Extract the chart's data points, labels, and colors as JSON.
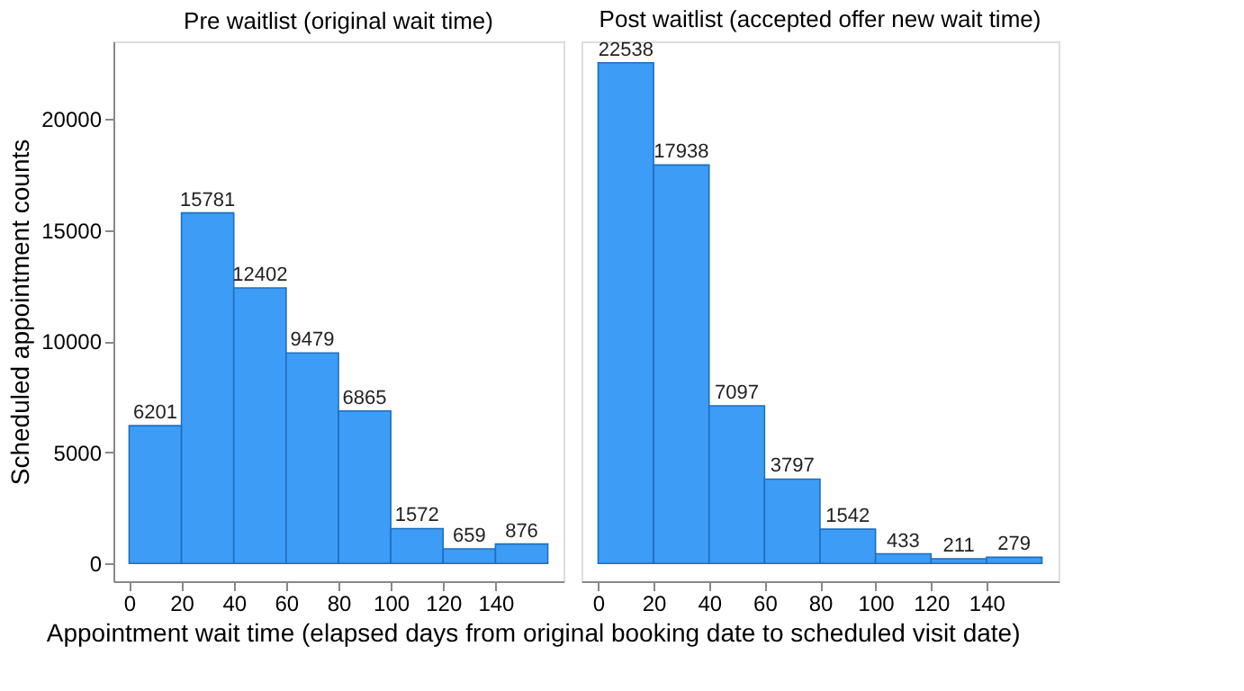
{
  "chart_data": [
    {
      "type": "histogram",
      "title": "Pre waitlist (original wait time)",
      "xlabel": "Appointment wait time (elapsed days from original booking date to scheduled visit date)",
      "ylabel": "Scheduled appointment counts",
      "bins": [
        0,
        20,
        40,
        60,
        80,
        100,
        120,
        140,
        160
      ],
      "values": [
        6201,
        15781,
        12402,
        9479,
        6865,
        1572,
        659,
        876
      ],
      "color": "#3d9cf5",
      "xlim": [
        -6,
        166
      ],
      "ylim": [
        -800,
        23500
      ],
      "xticks": [
        0,
        20,
        40,
        60,
        80,
        100,
        120,
        140
      ],
      "yticks": [
        0,
        5000,
        10000,
        15000,
        20000
      ],
      "data_labels": true,
      "grid": false
    },
    {
      "type": "histogram",
      "title": "Post waitlist (accepted offer new wait time)",
      "bins": [
        0,
        20,
        40,
        60,
        80,
        100,
        120,
        140,
        160
      ],
      "values": [
        22538,
        17938,
        7097,
        3797,
        1542,
        433,
        211,
        279
      ],
      "color": "#3d9cf5",
      "xlim": [
        -6,
        166
      ],
      "ylim": [
        -800,
        23500
      ],
      "xticks": [
        0,
        20,
        40,
        60,
        80,
        100,
        120,
        140
      ],
      "yticks": [
        0,
        5000,
        10000,
        15000,
        20000
      ],
      "data_labels": true,
      "grid": false,
      "tick_labels": "x"
    }
  ]
}
